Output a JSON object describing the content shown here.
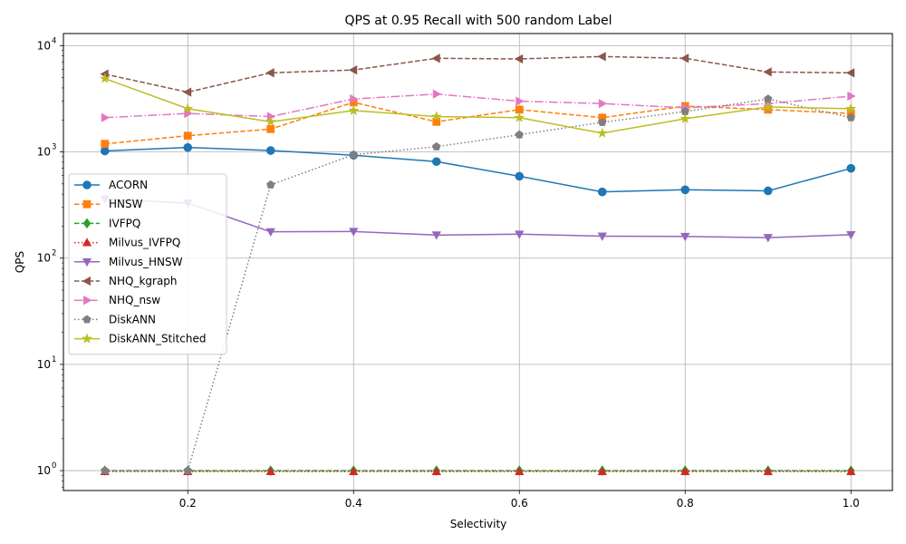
{
  "chart_data": {
    "type": "line",
    "title": "QPS at 0.95 Recall with 500 random Label",
    "xlabel": "Selectivity",
    "ylabel": "QPS",
    "yscale": "log",
    "xlim": [
      0.05,
      1.05
    ],
    "ylim": [
      0.65,
      13000
    ],
    "grid": true,
    "legend_position": "center-left",
    "x": [
      0.1,
      0.2,
      0.3,
      0.4,
      0.5,
      0.6,
      0.7,
      0.8,
      0.9,
      1.0
    ],
    "x_ticks": [
      0.2,
      0.4,
      0.6,
      0.8,
      1.0
    ],
    "x_tick_labels": [
      "0.2",
      "0.4",
      "0.6",
      "0.8",
      "1.0"
    ],
    "y_ticks": [
      1,
      10,
      100,
      1000,
      10000
    ],
    "y_tick_labels": [
      "10",
      "10",
      "10",
      "10",
      "10"
    ],
    "y_tick_exponents": [
      "0",
      "1",
      "2",
      "3",
      "4"
    ],
    "series": [
      {
        "name": "ACORN",
        "color": "#1f77b4",
        "marker": "circle",
        "dash": "solid",
        "values": [
          1020,
          1100,
          1030,
          930,
          810,
          590,
          420,
          440,
          430,
          700
        ]
      },
      {
        "name": "HNSW",
        "color": "#ff7f0e",
        "marker": "square",
        "dash": "dashed",
        "values": [
          1190,
          1420,
          1640,
          2930,
          1920,
          2500,
          2100,
          2700,
          2500,
          2300
        ]
      },
      {
        "name": "IVFPQ",
        "color": "#2ca02c",
        "marker": "diamond",
        "dash": "dashed",
        "values": [
          1,
          1,
          1,
          1,
          1,
          1,
          1,
          1,
          1,
          1
        ]
      },
      {
        "name": "Milvus_IVFPQ",
        "color": "#d62728",
        "marker": "triangle-up",
        "dash": "dotted",
        "values": [
          0.98,
          0.98,
          0.98,
          0.98,
          0.98,
          0.98,
          0.98,
          0.98,
          0.98,
          0.98
        ]
      },
      {
        "name": "Milvus_HNSW",
        "color": "#9467bd",
        "marker": "triangle-down",
        "dash": "solid",
        "values": [
          360,
          330,
          177,
          178,
          165,
          168,
          161,
          160,
          156,
          166
        ]
      },
      {
        "name": "NHQ_kgraph",
        "color": "#8c564b",
        "marker": "triangle-left",
        "dash": "dashed",
        "values": [
          5400,
          3650,
          5550,
          5900,
          7600,
          7500,
          7900,
          7600,
          5650,
          5550
        ]
      },
      {
        "name": "NHQ_nsw",
        "color": "#e377c2",
        "marker": "triangle-right",
        "dash": "dashdot",
        "values": [
          2100,
          2300,
          2150,
          3150,
          3500,
          3000,
          2850,
          2600,
          2850,
          3350
        ]
      },
      {
        "name": "DiskANN",
        "color": "#7f7f7f",
        "marker": "pentagon",
        "dash": "dotted",
        "values": [
          1,
          1,
          490,
          940,
          1120,
          1450,
          1900,
          2400,
          3150,
          2100
        ]
      },
      {
        "name": "DiskANN_Stitched",
        "color": "#bcbd22",
        "marker": "star",
        "dash": "solid",
        "values": [
          4900,
          2550,
          1920,
          2450,
          2150,
          2100,
          1500,
          2050,
          2650,
          2550
        ]
      }
    ]
  }
}
